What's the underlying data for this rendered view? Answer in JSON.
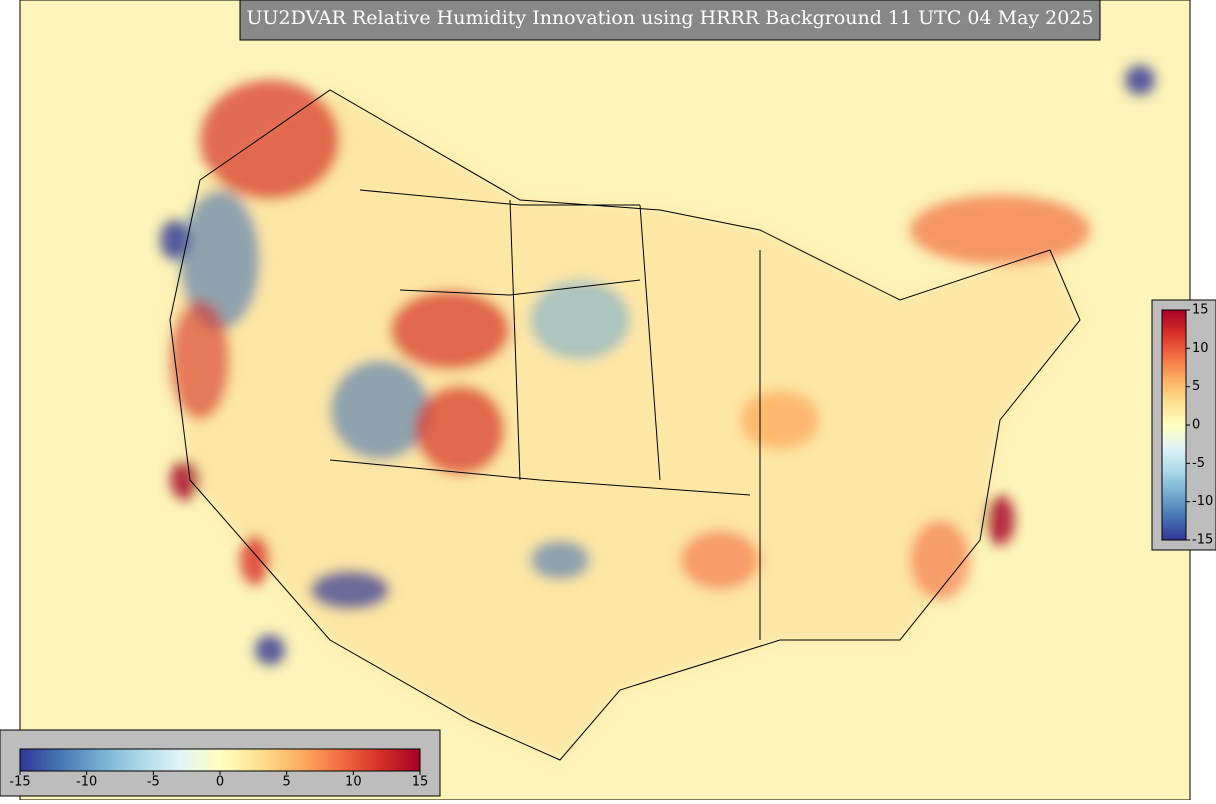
{
  "title": "UU2DVAR Relative Humidity Innovation using HRRR Background 11 UTC 04 May 2025",
  "colormap": [
    "#313695",
    "#4575b4",
    "#74add1",
    "#abd9e9",
    "#e0f3f8",
    "#ffffbf",
    "#fee090",
    "#fdae61",
    "#f46d43",
    "#d73027",
    "#a50026"
  ],
  "colorbar_horizontal": {
    "range": [
      -15,
      15
    ],
    "ticks": [
      -15,
      -10,
      -5,
      0,
      5,
      10,
      15
    ]
  },
  "colorbar_vertical": {
    "range": [
      -15,
      15
    ],
    "ticks": [
      15,
      10,
      5,
      0,
      -5,
      -10,
      -15
    ]
  }
}
